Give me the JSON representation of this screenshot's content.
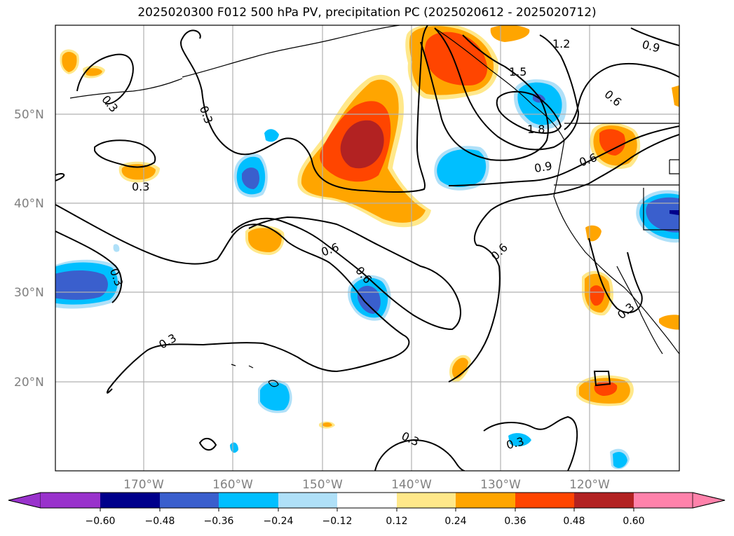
{
  "title": "2025020300 F012 500 hPa PV, precipitation PC (2025020612 - 2025020712)",
  "colors": {
    "n060": "#9932cc",
    "n048": "#00008b",
    "n036": "#3a5fcd",
    "n024": "#00bfff",
    "n012": "#afe0f8",
    "zero": "#ffffff",
    "p012": "#ffe88a",
    "p024": "#ffa500",
    "p036": "#ff4500",
    "p048": "#b22222",
    "p060": "#ff82ab"
  },
  "lat_labels": [
    "50°N",
    "40°N",
    "30°N",
    "20°N"
  ],
  "lon_labels": [
    "170°W",
    "160°W",
    "150°W",
    "140°W",
    "130°W",
    "120°W"
  ],
  "colorbar": {
    "ticks": [
      "−0.60",
      "−0.48",
      "−0.36",
      "−0.24",
      "−0.12",
      "0.12",
      "0.24",
      "0.36",
      "0.48",
      "0.60"
    ]
  },
  "contour_labels": [
    "0.3",
    "0.3",
    "0.3",
    "0.3",
    "0.3",
    "0.3",
    "0.3",
    "0.6",
    "0.6",
    "0.6",
    "0.6",
    "0.6",
    "0.9",
    "0.9",
    "1.2",
    "1.5",
    "1.8"
  ]
}
